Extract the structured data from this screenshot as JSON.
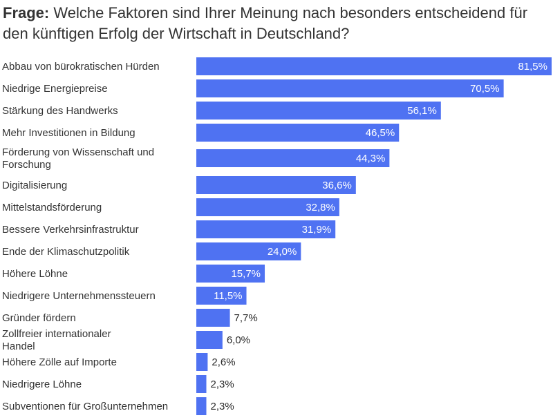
{
  "title": {
    "prefix": "Frage:",
    "text": "Welche Faktoren sind Ihrer Meinung nach besonders entscheidend für den künftigen Erfolg der Wirtschaft in Deutschland?"
  },
  "colors": {
    "bar": "#4f72f2",
    "label_inside": "#ffffff",
    "label_outside": "#2b2b2b"
  },
  "chart_data": {
    "type": "bar",
    "orientation": "horizontal",
    "categories": [
      "Abbau von bürokratischen Hürden",
      "Niedrige Energiepreise",
      "Stärkung des Handwerks",
      "Mehr Investitionen in Bildung",
      "Förderung von Wissenschaft und Forschung",
      "Digitalisierung",
      "Mittelstandsförderung",
      "Bessere Verkehrsinfrastruktur",
      "Ende der Klimaschutzpolitik",
      "Höhere Löhne",
      "Niedrigere Unternehmenssteuern",
      "Gründer fördern",
      "Zollfreier internationaler Handel",
      "Höhere Zölle auf Importe",
      "Niedrigere Löhne",
      "Subventionen für Großunternehmen"
    ],
    "values": [
      81.5,
      70.5,
      56.1,
      46.5,
      44.3,
      36.6,
      32.8,
      31.9,
      24.0,
      15.7,
      11.5,
      7.7,
      6.0,
      2.6,
      2.3,
      2.3
    ],
    "value_labels": [
      "81,5%",
      "70,5%",
      "56,1%",
      "46,5%",
      "44,3%",
      "36,6%",
      "32,8%",
      "31,9%",
      "24,0%",
      "15,7%",
      "11,5%",
      "7,7%",
      "6,0%",
      "2,6%",
      "2,3%",
      "2,3%"
    ],
    "xlim": [
      0,
      81.5
    ],
    "grid": false,
    "legend": "none"
  }
}
